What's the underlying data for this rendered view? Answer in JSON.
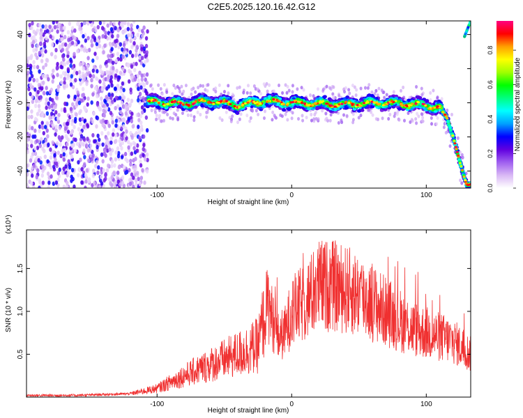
{
  "title": "C2E5.2025.120.16.42.G12",
  "chart_data": [
    {
      "type": "heatmap",
      "title": "C2E5.2025.120.16.42.G12",
      "xlabel": "Height of straight line (km)",
      "ylabel": "Frequency (Hz)",
      "xlim": [
        -197,
        133
      ],
      "ylim": [
        -50,
        48
      ],
      "x_ticks": [
        -100,
        0,
        100
      ],
      "y_ticks": [
        -40,
        -20,
        0,
        20,
        40
      ],
      "colorbar": {
        "label": "Normalized spectral amplitude",
        "range": [
          0,
          0.97
        ],
        "ticks": [
          0.0,
          0.2,
          0.4,
          0.6,
          0.8
        ],
        "colormap": [
          "#ffffff",
          "#d9b8f5",
          "#a060f0",
          "#6000e0",
          "#0000ff",
          "#00a0ff",
          "#00ffff",
          "#00ff80",
          "#00ff00",
          "#a0ff00",
          "#ffff00",
          "#ffa000",
          "#ff0000",
          "#ff0080"
        ]
      },
      "ridge": {
        "points": [
          {
            "x": -105,
            "y": 0.5
          },
          {
            "x": -80,
            "y": -0.5
          },
          {
            "x": -60,
            "y": 1
          },
          {
            "x": -40,
            "y": -1.5
          },
          {
            "x": -20,
            "y": 1
          },
          {
            "x": 0,
            "y": 0
          },
          {
            "x": 20,
            "y": -0.5
          },
          {
            "x": 40,
            "y": -1
          },
          {
            "x": 60,
            "y": 0
          },
          {
            "x": 80,
            "y": -0.5
          },
          {
            "x": 100,
            "y": -1.5
          },
          {
            "x": 110,
            "y": -3
          },
          {
            "x": 115,
            "y": -8
          },
          {
            "x": 120,
            "y": -20
          },
          {
            "x": 125,
            "y": -35
          },
          {
            "x": 130,
            "y": -48
          }
        ],
        "upper_branch": [
          {
            "x": 128,
            "y": 38
          },
          {
            "x": 133,
            "y": 48
          }
        ]
      },
      "noise_region": {
        "x_from": -197,
        "x_to": -107,
        "y_from": -50,
        "y_to": 48
      }
    },
    {
      "type": "line",
      "xlabel": "Height of straight line (km)",
      "ylabel": "SNR (10 * v/v)",
      "y_multiplier": "(x10⁴)",
      "xlim": [
        -197,
        133
      ],
      "ylim": [
        0,
        1.95
      ],
      "x_ticks": [
        -100,
        0,
        100
      ],
      "y_ticks": [
        0.5,
        1.0,
        1.5
      ],
      "color": "#f03030",
      "envelope": [
        {
          "x": -197,
          "y": 0.02
        },
        {
          "x": -160,
          "y": 0.02
        },
        {
          "x": -120,
          "y": 0.04
        },
        {
          "x": -100,
          "y": 0.1
        },
        {
          "x": -80,
          "y": 0.25
        },
        {
          "x": -60,
          "y": 0.38
        },
        {
          "x": -40,
          "y": 0.5
        },
        {
          "x": -25,
          "y": 0.6
        },
        {
          "x": -18,
          "y": 1.1
        },
        {
          "x": -10,
          "y": 0.7
        },
        {
          "x": -5,
          "y": 0.75
        },
        {
          "x": 0,
          "y": 1.0
        },
        {
          "x": 10,
          "y": 1.1
        },
        {
          "x": 20,
          "y": 1.3
        },
        {
          "x": 30,
          "y": 1.3
        },
        {
          "x": 40,
          "y": 1.25
        },
        {
          "x": 50,
          "y": 1.2
        },
        {
          "x": 60,
          "y": 1.1
        },
        {
          "x": 70,
          "y": 1.0
        },
        {
          "x": 80,
          "y": 0.9
        },
        {
          "x": 90,
          "y": 0.8
        },
        {
          "x": 100,
          "y": 0.75
        },
        {
          "x": 110,
          "y": 0.7
        },
        {
          "x": 120,
          "y": 0.65
        },
        {
          "x": 133,
          "y": 0.5
        }
      ]
    }
  ]
}
